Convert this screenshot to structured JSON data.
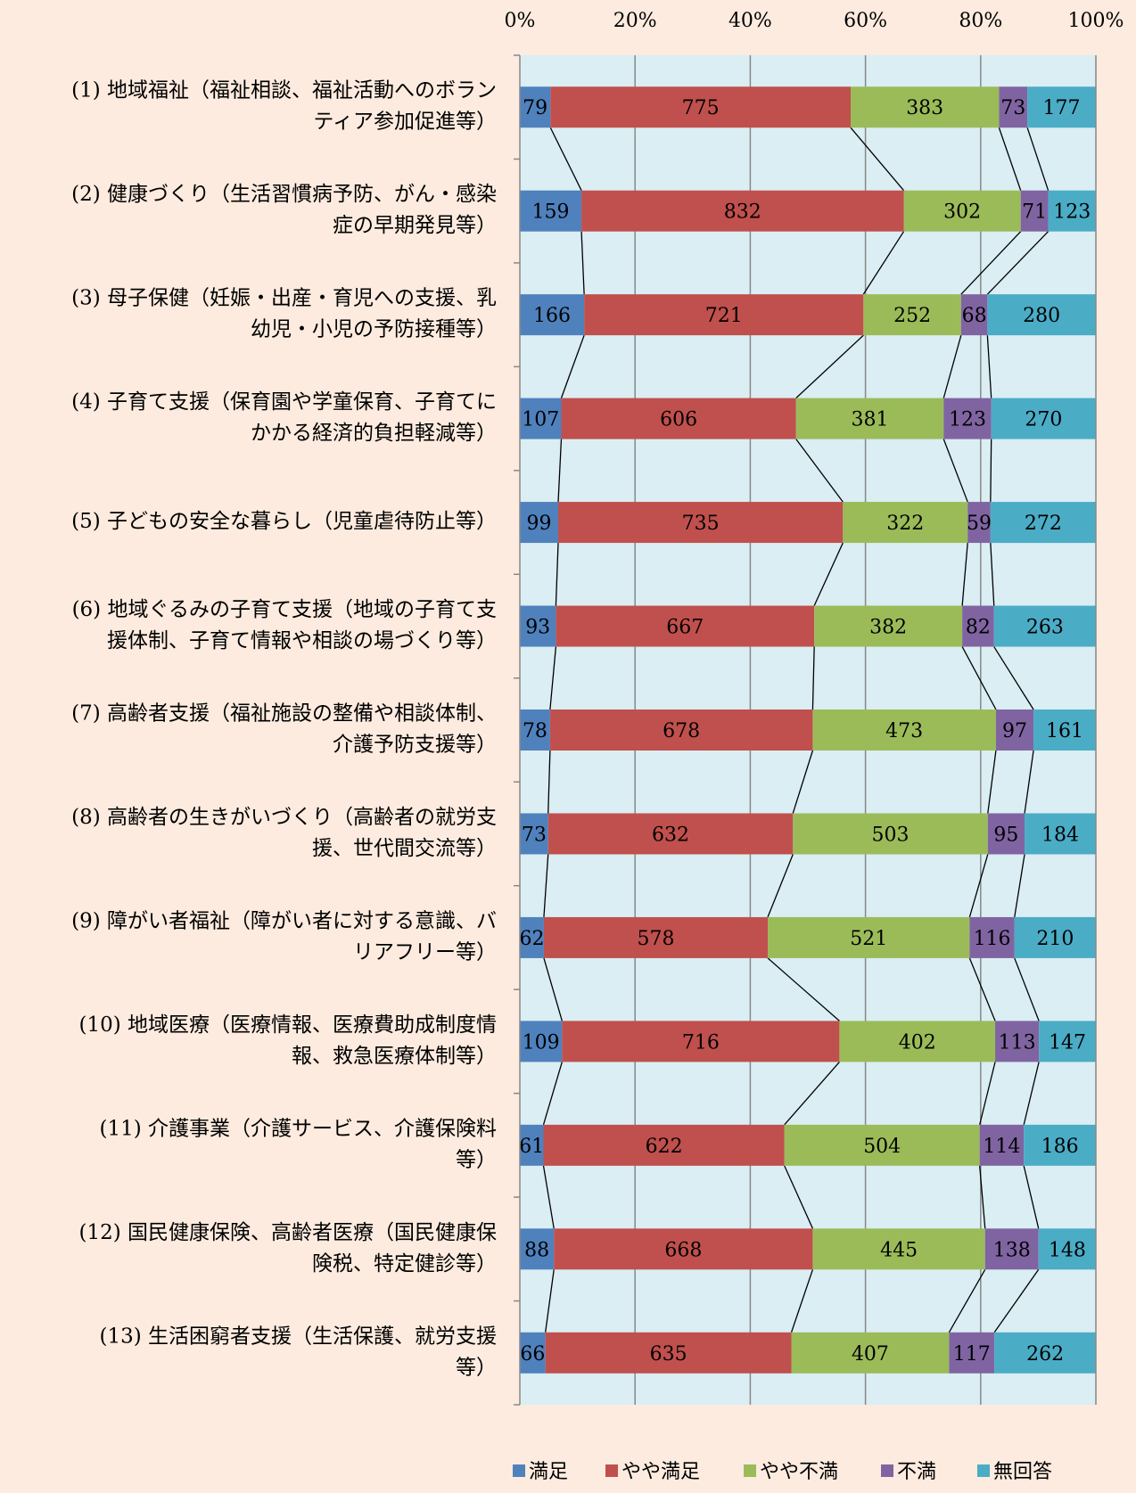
{
  "chart_data": {
    "type": "bar",
    "orientation": "horizontal",
    "stacked": "percent",
    "xlim": [
      0,
      100
    ],
    "x_ticks": [
      "0%",
      "20%",
      "40%",
      "60%",
      "80%",
      "100%"
    ],
    "grid": true,
    "series_lines": true,
    "legend_position": "bottom",
    "categories": [
      [
        "(1) 地域福祉（福祉相談、福祉活動へのボラン",
        "ティア参加促進等）"
      ],
      [
        "(2) 健康づくり（生活習慣病予防、がん・感染",
        "症の早期発見等）"
      ],
      [
        "(3) 母子保健（妊娠・出産・育児への支援、乳",
        "幼児・小児の予防接種等）"
      ],
      [
        "(4) 子育て支援（保育園や学童保育、子育てに",
        "かかる経済的負担軽減等）"
      ],
      [
        "(5) 子どもの安全な暮らし（児童虐待防止等）"
      ],
      [
        "(6) 地域ぐるみの子育て支援（地域の子育て支",
        "援体制、子育て情報や相談の場づくり等）"
      ],
      [
        "(7) 高齢者支援（福祉施設の整備や相談体制、",
        "介護予防支援等）"
      ],
      [
        "(8) 高齢者の生きがいづくり（高齢者の就労支",
        "援、世代間交流等）"
      ],
      [
        "(9) 障がい者福祉（障がい者に対する意識、バ",
        "リアフリー等）"
      ],
      [
        "(10) 地域医療（医療情報、医療費助成制度情",
        "報、救急医療体制等）"
      ],
      [
        "(11) 介護事業（介護サービス、介護保険料",
        "等）"
      ],
      [
        "(12) 国民健康保険、高齢者医療（国民健康保",
        "険税、特定健診等）"
      ],
      [
        "(13) 生活困窮者支援（生活保護、就労支援",
        "等）"
      ]
    ],
    "series": [
      {
        "name": "満足",
        "color": "#4f81bd",
        "values": [
          79,
          159,
          166,
          107,
          99,
          93,
          78,
          73,
          62,
          109,
          61,
          88,
          66
        ]
      },
      {
        "name": "やや満足",
        "color": "#c0504d",
        "values": [
          775,
          832,
          721,
          606,
          735,
          667,
          678,
          632,
          578,
          716,
          622,
          668,
          635
        ]
      },
      {
        "name": "やや不満",
        "color": "#9bbb59",
        "values": [
          383,
          302,
          252,
          381,
          322,
          382,
          473,
          503,
          521,
          402,
          504,
          445,
          407
        ]
      },
      {
        "name": "不満",
        "color": "#8064a2",
        "values": [
          73,
          71,
          68,
          123,
          59,
          82,
          97,
          95,
          116,
          113,
          114,
          138,
          117
        ]
      },
      {
        "name": "無回答",
        "color": "#4bacc6",
        "values": [
          177,
          123,
          280,
          270,
          272,
          263,
          161,
          184,
          210,
          147,
          186,
          148,
          262
        ]
      }
    ]
  },
  "colors": {
    "page_background": "#fdebdf",
    "plot_background": "#daeef3",
    "grid": "#888888",
    "series_line": "#000000"
  }
}
